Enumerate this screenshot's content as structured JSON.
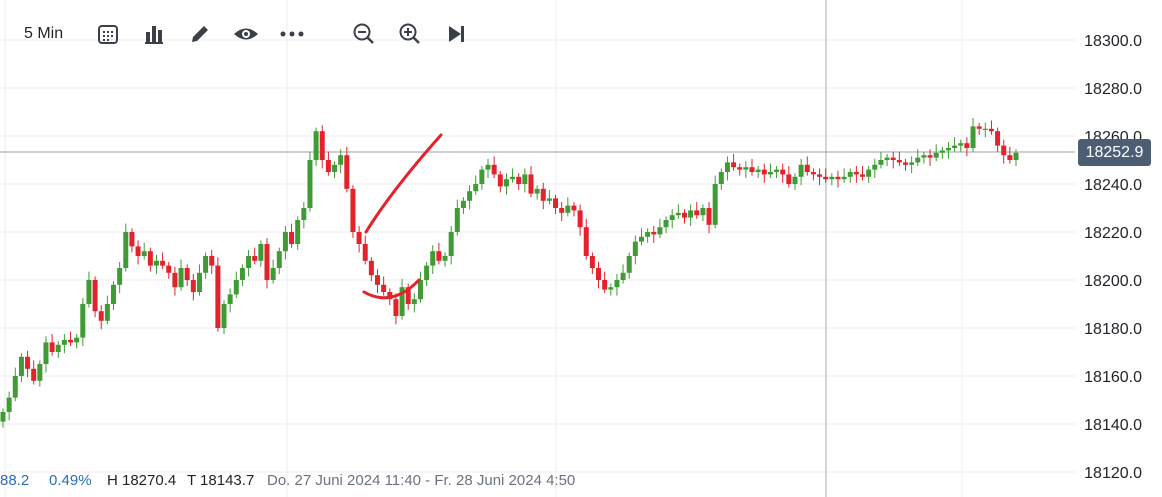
{
  "toolbar": {
    "interval_label": "5 Min",
    "icons": [
      "calendar-icon",
      "bar-chart-icon",
      "pencil-icon",
      "eye-icon",
      "more-icon",
      "zoom-out-icon",
      "zoom-in-icon",
      "skip-forward-icon"
    ]
  },
  "current_price_label": "18252.9",
  "footer": {
    "change": "88.2",
    "change_pct": "0.49%",
    "high": "H 18270.4",
    "low": "T 18143.7",
    "range": "Do. 27 Juni 2024 11:40 - Fr. 28 Juni 2024 4:50"
  },
  "colors": {
    "up": "#3f9c35",
    "down": "#e3222c",
    "accent_blue": "#2a6ebb",
    "price_badge": "#4c5d74"
  },
  "chart_data": {
    "type": "candlestick",
    "ylim": [
      18115,
      18310
    ],
    "y_ticks": [
      "18120.0",
      "18140.0",
      "18160.0",
      "18180.0",
      "18200.0",
      "18220.0",
      "18240.0",
      "18260.0",
      "18280.0",
      "18300.0"
    ],
    "current_price": 18252.9,
    "close": [
      18145,
      18151,
      18160,
      18168,
      18163,
      18158,
      18165,
      18174,
      18170,
      18173,
      18175,
      18174,
      18176,
      18190,
      18200,
      18187,
      18183,
      18190,
      18198,
      18205,
      18220,
      18214,
      18210,
      18212,
      18206,
      18208,
      18206,
      18203,
      18197,
      18205,
      18200,
      18195,
      18203,
      18210,
      18206,
      18180,
      18190,
      18194,
      18200,
      18205,
      18210,
      18208,
      18215,
      18200,
      18205,
      18212,
      18220,
      18215,
      18225,
      18230,
      18250,
      18262,
      18250,
      18245,
      18248,
      18252,
      18238,
      18220,
      18215,
      18208,
      18202,
      18198,
      18195,
      18192,
      18185,
      18197,
      18190,
      18192,
      18200,
      18206,
      18212,
      18208,
      18210,
      18220,
      18230,
      18233,
      18237,
      18240,
      18246,
      18248,
      18244,
      18239,
      18242,
      18243,
      18240,
      18244,
      18236,
      18238,
      18233,
      18234,
      18230,
      18228,
      18231,
      18229,
      18222,
      18210,
      18205,
      18200,
      18196,
      18197,
      18200,
      18203,
      18210,
      18216,
      18218,
      18220,
      18219,
      18222,
      18225,
      18227,
      18228,
      18226,
      18229,
      18227,
      18230,
      18223,
      18240,
      18245,
      18249,
      18247,
      18246,
      18247,
      18245,
      18246,
      18244,
      18245,
      18246,
      18244,
      18240,
      18243,
      18248,
      18245,
      18244,
      18243,
      18242,
      18243,
      18242,
      18243,
      18245,
      18244,
      18243,
      18246,
      18248,
      18250,
      18251,
      18250,
      18249,
      18248,
      18249,
      18251,
      18252,
      18251,
      18253,
      18254,
      18255,
      18256,
      18257,
      18255,
      18264,
      18263,
      18263,
      18262,
      18256,
      18252,
      18250,
      18253
    ],
    "candles_hint": "open is previous close; high/low are close ± small wicks (estimated)"
  }
}
